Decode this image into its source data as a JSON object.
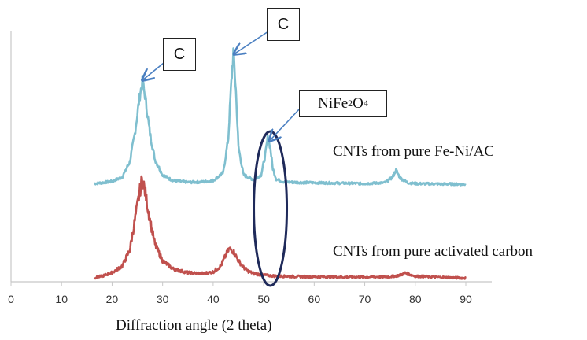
{
  "chart_data": {
    "type": "line",
    "xlabel": "Diffraction angle (2 theta)",
    "xlim": [
      0,
      90
    ],
    "xticks": [
      "0",
      "10",
      "20",
      "30",
      "40",
      "50",
      "60",
      "70",
      "80",
      "90"
    ],
    "y_axis_labels": "none",
    "grid": false,
    "series": [
      {
        "name": "CNTs from pure Fe-Ni/AC",
        "color": "#7FBFCF",
        "x": [
          16.5,
          18,
          20,
          22,
          23.5,
          24.5,
          25.5,
          26,
          26.5,
          27.5,
          28.5,
          30,
          32,
          35,
          38,
          40,
          42,
          43,
          43.5,
          44,
          44.5,
          45,
          46,
          48,
          49.5,
          50.3,
          50.8,
          51.3,
          51.8,
          52.5,
          54,
          56,
          60,
          65,
          70,
          74,
          75.5,
          76.2,
          77,
          78.5,
          80,
          85,
          88,
          90
        ],
        "y": [
          0.5,
          0.7,
          1.0,
          2.0,
          5.5,
          12,
          21,
          24,
          21,
          12,
          6,
          2.5,
          1.2,
          0.8,
          0.9,
          1.2,
          3.0,
          11,
          22,
          31,
          22,
          9,
          2.5,
          1.4,
          2.5,
          7,
          11,
          9,
          4,
          1.5,
          0.9,
          0.8,
          0.7,
          0.6,
          0.5,
          0.7,
          2.0,
          3.6,
          1.8,
          0.7,
          0.5,
          0.4,
          0.4,
          0.3
        ]
      },
      {
        "name": "CNTs from pure activated carbon",
        "color": "#C0504D",
        "x": [
          16.5,
          18,
          20,
          22,
          23.5,
          24.5,
          25.5,
          26,
          26.5,
          27.5,
          28.5,
          30,
          32,
          35,
          38,
          40,
          41.5,
          42.5,
          43.2,
          44,
          45,
          46,
          47,
          48,
          50,
          52,
          55,
          60,
          65,
          70,
          75,
          77,
          78,
          79,
          80,
          85,
          90
        ],
        "y": [
          0.6,
          1.2,
          2.5,
          5.0,
          11,
          22,
          33,
          38,
          33,
          22,
          13,
          7,
          4,
          2.5,
          2.2,
          2.8,
          5,
          9,
          11.5,
          10.5,
          7,
          4.5,
          3,
          2.2,
          1.6,
          1.3,
          1.1,
          1.0,
          0.9,
          0.9,
          1.0,
          1.6,
          2.4,
          1.8,
          1.2,
          0.8,
          0.5
        ]
      }
    ],
    "annotations": [
      {
        "text": "C",
        "points_to_x": 26.2
      },
      {
        "text": "C",
        "points_to_x": 44.3
      },
      {
        "text_base": "NiFe",
        "sub1": "2",
        "text_mid": "O",
        "sub2": "4",
        "points_to_x": 51.3
      }
    ],
    "highlight": {
      "shape": "ellipse",
      "color": "#1F2A5A",
      "x_center": 51
    }
  }
}
